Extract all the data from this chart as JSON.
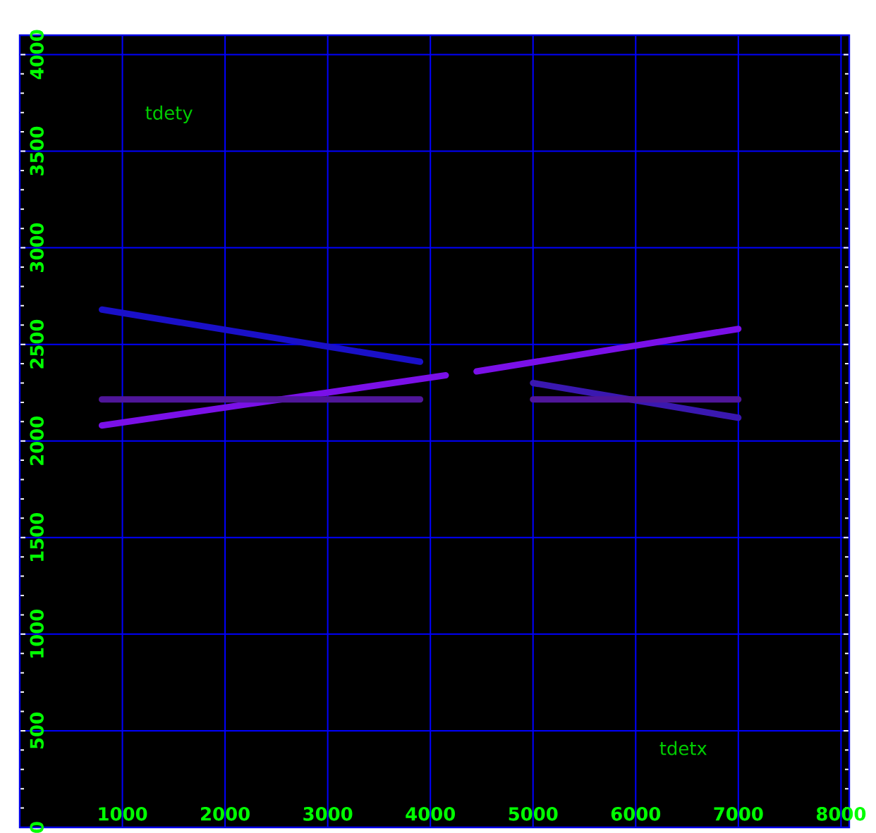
{
  "chart_data": {
    "type": "line",
    "xlabel": "tdetx",
    "ylabel": "tdety",
    "xlim": [
      0,
      8080
    ],
    "ylim": [
      0,
      4100
    ],
    "xticks": [
      1000,
      2000,
      3000,
      4000,
      5000,
      6000,
      7000,
      8000
    ],
    "yticks": [
      0,
      500,
      1000,
      1500,
      2000,
      2500,
      3000,
      3500,
      4000
    ],
    "grid": true,
    "legend": false,
    "marker": "none",
    "line_style": "solid",
    "series": [
      {
        "color": "#7a10e8",
        "x": [
          800,
          4150,
          4300,
          4450,
          7000
        ],
        "values": [
          2080,
          2340,
          null,
          2360,
          2580
        ]
      },
      {
        "color": "#1a10c8",
        "x": [
          800,
          3900
        ],
        "values": [
          2680,
          2410
        ]
      },
      {
        "color": "#3a18b0",
        "x": [
          5000,
          7000
        ],
        "values": [
          2300,
          2120
        ]
      },
      {
        "color": "#50169a",
        "x": [
          800,
          3900
        ],
        "values": [
          2215,
          2215
        ]
      },
      {
        "color": "#50169a",
        "x": [
          5000,
          7000
        ],
        "values": [
          2215,
          2215
        ]
      }
    ]
  }
}
